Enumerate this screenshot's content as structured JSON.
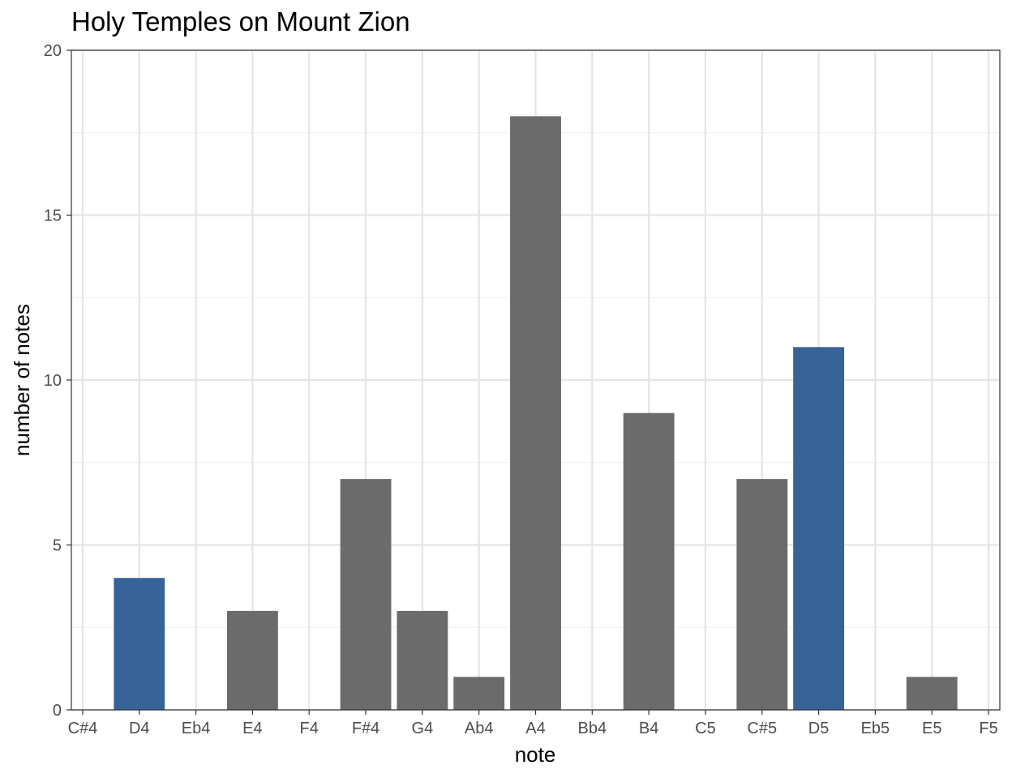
{
  "chart_data": {
    "type": "bar",
    "title": "Holy Temples on Mount Zion",
    "xlabel": "note",
    "ylabel": "number of notes",
    "categories": [
      "C#4",
      "D4",
      "Eb4",
      "E4",
      "F4",
      "F#4",
      "G4",
      "Ab4",
      "A4",
      "Bb4",
      "B4",
      "C5",
      "C#5",
      "D5",
      "Eb5",
      "E5",
      "F5"
    ],
    "values": [
      0,
      4,
      0,
      3,
      0,
      7,
      3,
      1,
      18,
      0,
      9,
      0,
      7,
      11,
      0,
      1,
      0
    ],
    "highlighted": [
      "D4",
      "D5"
    ],
    "ylim": [
      0,
      20
    ],
    "yticks": [
      "0",
      "5",
      "10",
      "15",
      "20"
    ],
    "grid": true,
    "legend": "none",
    "colors": {
      "bar": "#6b6b6b",
      "highlight": "#376399",
      "grid": "#e5e5e5",
      "grid_minor": "#f0f0f0",
      "axis": "#333333",
      "text": "#000000",
      "tick_text": "#4d4d4d"
    }
  }
}
